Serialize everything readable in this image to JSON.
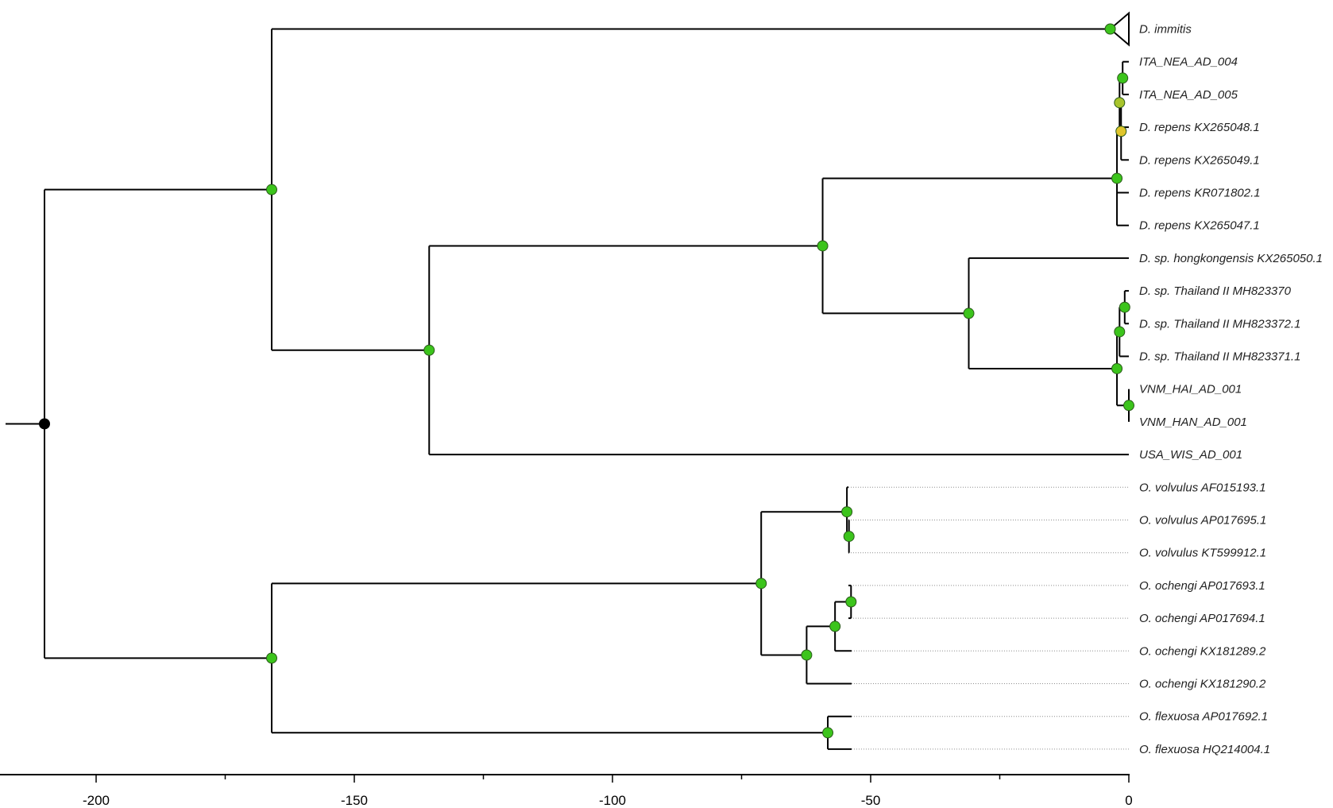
{
  "tree": {
    "taxa": [
      "D. immitis",
      "ITA_NEA_AD_004",
      "ITA_NEA_AD_005",
      "D. repens KX265048.1",
      "D. repens KX265049.1",
      "D. repens KR071802.1",
      "D. repens KX265047.1",
      "D. sp. hongkongensis KX265050.1",
      "D. sp. Thailand II MH823370",
      "D. sp. Thailand II MH823372.1",
      "D. sp. Thailand II MH823371.1",
      "VNM_HAI_AD_001",
      "VNM_HAN_AD_001",
      "USA_WIS_AD_001",
      "O. volvulus AF015193.1",
      "O. volvulus AP017695.1",
      "O. volvulus KT599912.1",
      "O. ochengi AP017693.1",
      "O. ochengi AP017694.1",
      "O. ochengi KX181289.2",
      "O. ochengi KX181290.2",
      "O. flexuosa AP017692.1",
      "O. flexuosa HQ214004.1"
    ],
    "collapsed_clade": "D. immitis",
    "root_age": -210,
    "node_color": "#3cc41c",
    "low_support_colors": [
      "#a8c42c",
      "#e0c52c"
    ],
    "root_node_color": "#000000"
  },
  "axis": {
    "ticks": [
      -200,
      -150,
      -100,
      -50,
      0
    ],
    "tick_labels": [
      "-200",
      "-150",
      "-100",
      "-50",
      "0"
    ],
    "range": [
      -218,
      0
    ]
  }
}
